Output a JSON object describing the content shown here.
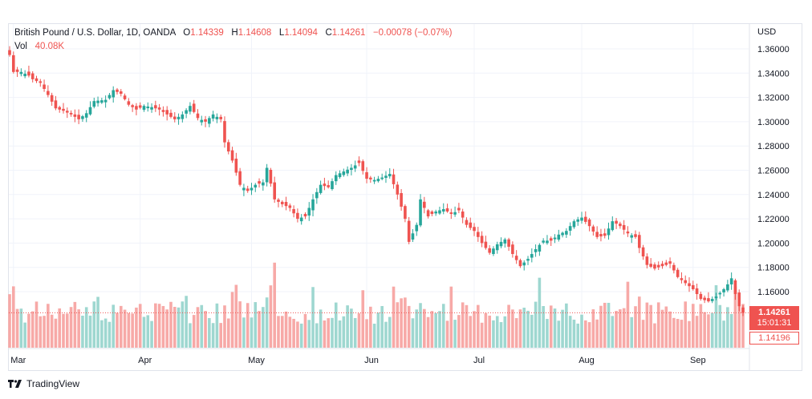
{
  "legend": {
    "symbol": "British Pound / U.S. Dollar, 1D, OANDA",
    "open_label": "O",
    "open": "1.14339",
    "high_label": "H",
    "high": "1.14608",
    "low_label": "L",
    "low": "1.14094",
    "close_label": "C",
    "close": "1.14261",
    "change": "−0.00078 (−0.07%)",
    "vol_label": "Vol",
    "vol": "40.08K"
  },
  "axis": {
    "currency": "USD",
    "last_price": "1.14261",
    "countdown": "15:01:31",
    "ma_price": "1.14196"
  },
  "brand": {
    "name": "TradingView"
  },
  "colors": {
    "up": "#26a69a",
    "down": "#ef5350",
    "vol_up": "#9ed7d0",
    "vol_down": "#f7a9a7",
    "grid": "#f0f3fa"
  },
  "chart_data": {
    "type": "candlestick",
    "symbol": "GBPUSD",
    "timeframe": "1D",
    "y_axis": {
      "ticks": [
        1.16,
        1.18,
        1.2,
        1.22,
        1.24,
        1.26,
        1.28,
        1.3,
        1.32,
        1.34,
        1.36
      ],
      "ylim": [
        1.135,
        1.364
      ],
      "position": "right"
    },
    "x_axis": {
      "labels": [
        "Mar",
        "Apr",
        "May",
        "Jun",
        "Jul",
        "Aug",
        "Sep"
      ],
      "label_positions_index": [
        1,
        34,
        63,
        93,
        121,
        149,
        178
      ]
    },
    "grid": true,
    "close_path": [
      [
        0,
        1.355
      ],
      [
        1,
        1.341
      ],
      [
        3,
        1.341
      ],
      [
        5,
        1.338
      ],
      [
        6,
        1.335
      ],
      [
        8,
        1.332
      ],
      [
        10,
        1.322
      ],
      [
        12,
        1.311
      ],
      [
        14,
        1.309
      ],
      [
        16,
        1.306
      ],
      [
        18,
        1.302
      ],
      [
        20,
        1.307
      ],
      [
        22,
        1.317
      ],
      [
        25,
        1.318
      ],
      [
        27,
        1.326
      ],
      [
        29,
        1.323
      ],
      [
        31,
        1.314
      ],
      [
        33,
        1.31
      ],
      [
        35,
        1.313
      ],
      [
        37,
        1.312
      ],
      [
        39,
        1.31
      ],
      [
        41,
        1.306
      ],
      [
        43,
        1.302
      ],
      [
        45,
        1.306
      ],
      [
        47,
        1.313
      ],
      [
        49,
        1.303
      ],
      [
        51,
        1.3
      ],
      [
        53,
        1.306
      ],
      [
        55,
        1.302
      ],
      [
        56,
        1.283
      ],
      [
        58,
        1.268
      ],
      [
        60,
        1.248
      ],
      [
        62,
        1.243
      ],
      [
        64,
        1.248
      ],
      [
        66,
        1.25
      ],
      [
        67,
        1.262
      ],
      [
        69,
        1.236
      ],
      [
        71,
        1.232
      ],
      [
        73,
        1.229
      ],
      [
        75,
        1.22
      ],
      [
        77,
        1.222
      ],
      [
        79,
        1.236
      ],
      [
        81,
        1.248
      ],
      [
        83,
        1.246
      ],
      [
        85,
        1.256
      ],
      [
        87,
        1.259
      ],
      [
        89,
        1.262
      ],
      [
        91,
        1.266
      ],
      [
        93,
        1.253
      ],
      [
        95,
        1.252
      ],
      [
        97,
        1.254
      ],
      [
        99,
        1.257
      ],
      [
        101,
        1.24
      ],
      [
        103,
        1.22
      ],
      [
        104,
        1.201
      ],
      [
        106,
        1.215
      ],
      [
        107,
        1.236
      ],
      [
        109,
        1.222
      ],
      [
        111,
        1.226
      ],
      [
        113,
        1.228
      ],
      [
        115,
        1.224
      ],
      [
        117,
        1.227
      ],
      [
        119,
        1.215
      ],
      [
        121,
        1.21
      ],
      [
        123,
        1.2
      ],
      [
        125,
        1.192
      ],
      [
        127,
        1.199
      ],
      [
        129,
        1.203
      ],
      [
        131,
        1.191
      ],
      [
        133,
        1.181
      ],
      [
        135,
        1.187
      ],
      [
        137,
        1.195
      ],
      [
        139,
        1.202
      ],
      [
        141,
        1.202
      ],
      [
        143,
        1.207
      ],
      [
        145,
        1.21
      ],
      [
        147,
        1.218
      ],
      [
        149,
        1.221
      ],
      [
        151,
        1.214
      ],
      [
        153,
        1.205
      ],
      [
        155,
        1.206
      ],
      [
        157,
        1.218
      ],
      [
        159,
        1.214
      ],
      [
        161,
        1.208
      ],
      [
        163,
        1.205
      ],
      [
        164,
        1.196
      ],
      [
        166,
        1.182
      ],
      [
        168,
        1.179
      ],
      [
        170,
        1.181
      ],
      [
        172,
        1.183
      ],
      [
        174,
        1.172
      ],
      [
        176,
        1.167
      ],
      [
        178,
        1.162
      ],
      [
        180,
        1.154
      ],
      [
        182,
        1.152
      ],
      [
        184,
        1.156
      ],
      [
        186,
        1.162
      ],
      [
        187,
        1.166
      ],
      [
        188,
        1.171
      ],
      [
        189,
        1.158
      ],
      [
        190,
        1.148
      ],
      [
        191,
        1.1426
      ]
    ]
  }
}
